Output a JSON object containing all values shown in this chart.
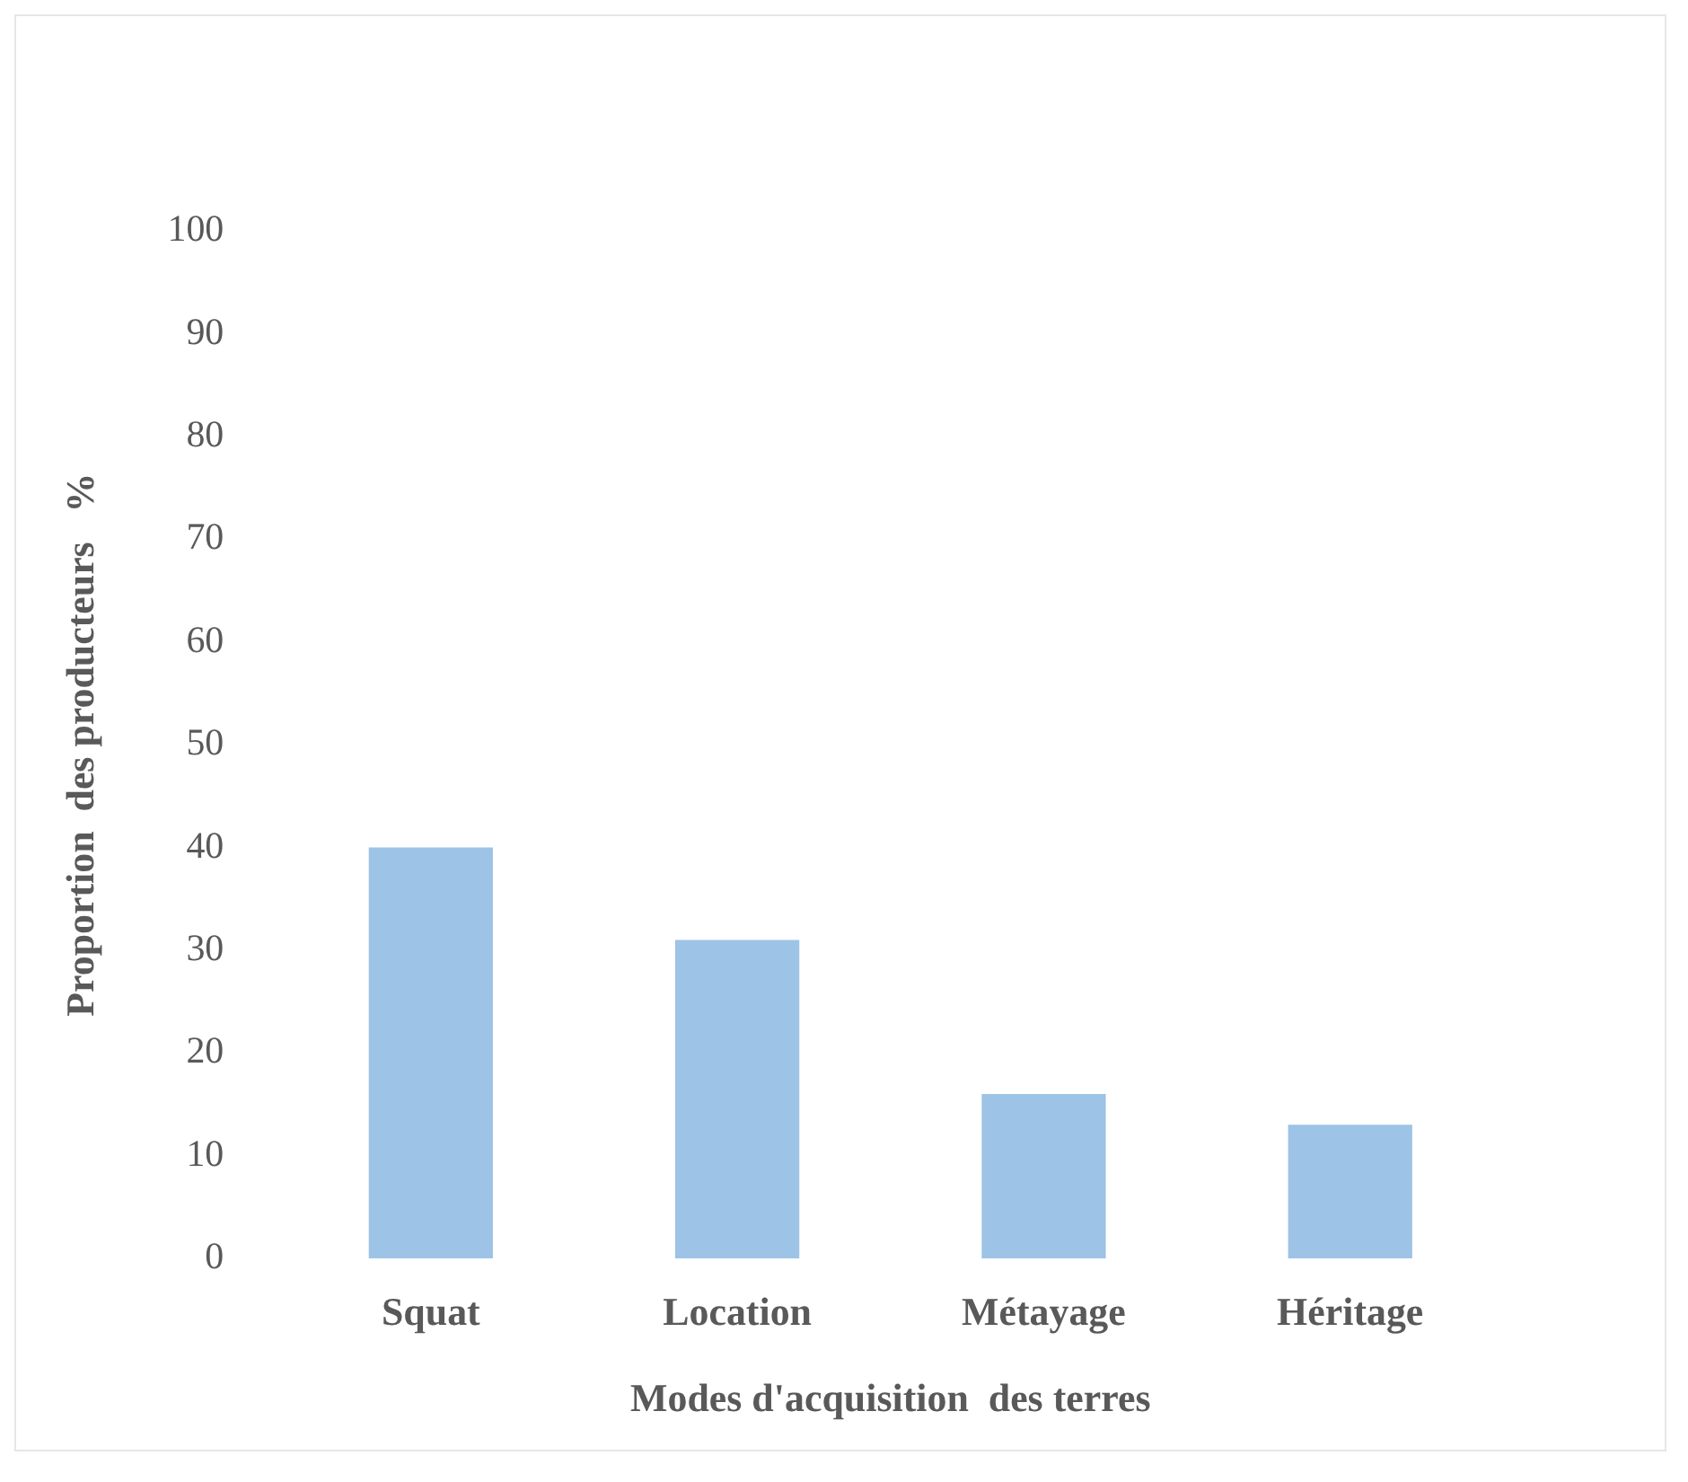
{
  "chart_data": {
    "type": "bar",
    "xlabel": "Modes d'acquisition  des terres",
    "ylabel": "Proportion  des producteurs   %",
    "categories": [
      "Squat",
      "Location",
      "Métayage",
      "Héritage"
    ],
    "values": [
      40,
      31,
      16,
      13
    ],
    "color": "#9dc3e6",
    "ylim": [
      0,
      100
    ],
    "yticks": [
      0,
      10,
      20,
      30,
      40,
      50,
      60,
      70,
      80,
      90,
      100
    ],
    "grid": false,
    "legend": false
  }
}
